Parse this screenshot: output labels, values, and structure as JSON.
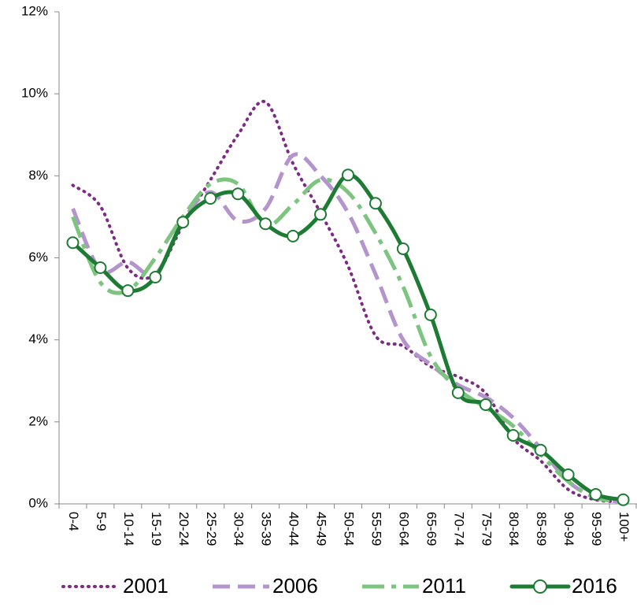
{
  "chart_data": {
    "type": "line",
    "categories": [
      "0-4",
      "5-9",
      "10-14",
      "15-19",
      "20-24",
      "25-29",
      "30-34",
      "35-39",
      "40-44",
      "45-49",
      "50-54",
      "55-59",
      "60-64",
      "65-69",
      "70-74",
      "75-79",
      "80-84",
      "85-89",
      "90-94",
      "95-99",
      "100+"
    ],
    "ylim": [
      0,
      12
    ],
    "yticks": [
      {
        "value": 0,
        "label": "0%"
      },
      {
        "value": 2,
        "label": "2%"
      },
      {
        "value": 4,
        "label": "4%"
      },
      {
        "value": 6,
        "label": "6%"
      },
      {
        "value": 8,
        "label": "8%"
      },
      {
        "value": 10,
        "label": "10%"
      },
      {
        "value": 12,
        "label": "12%"
      }
    ],
    "series": [
      {
        "name": "2001",
        "color": "#7b2c83",
        "style": "dotted",
        "values": [
          7.77,
          7.26,
          5.75,
          5.6,
          6.8,
          7.9,
          9.0,
          9.8,
          8.3,
          7.1,
          5.8,
          4.1,
          3.85,
          3.35,
          3.1,
          2.7,
          1.6,
          1.05,
          0.35,
          0.1,
          0.05
        ]
      },
      {
        "name": "2006",
        "color": "#b394cc",
        "style": "dashed",
        "values": [
          7.2,
          5.7,
          5.9,
          5.6,
          6.9,
          7.6,
          6.9,
          7.2,
          8.5,
          8.0,
          7.1,
          5.6,
          4.0,
          3.4,
          2.9,
          2.6,
          2.1,
          1.35,
          0.55,
          0.15,
          0.05
        ]
      },
      {
        "name": "2011",
        "color": "#7cc47f",
        "style": "dashdot",
        "values": [
          7.0,
          5.4,
          5.2,
          6.0,
          7.0,
          7.8,
          7.8,
          6.8,
          7.3,
          7.9,
          7.6,
          6.6,
          5.3,
          3.6,
          2.8,
          2.35,
          1.9,
          1.2,
          0.55,
          0.15,
          0.06
        ]
      },
      {
        "name": "2016",
        "color": "#1e7b34",
        "style": "solid",
        "marker": "circle",
        "values": [
          6.37,
          5.76,
          5.2,
          5.53,
          6.87,
          7.45,
          7.56,
          6.83,
          6.53,
          7.06,
          8.02,
          7.33,
          6.22,
          4.61,
          2.71,
          2.42,
          1.67,
          1.31,
          0.71,
          0.23,
          0.1
        ]
      }
    ]
  }
}
